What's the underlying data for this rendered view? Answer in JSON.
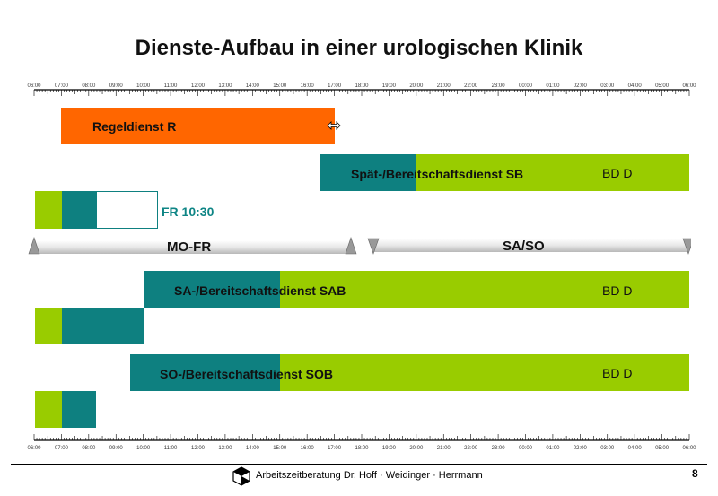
{
  "title": "Dienste-Aufbau in einer urologischen Klinik",
  "time_axis": {
    "labels": [
      "06:00",
      "07:00",
      "08:00",
      "09:00",
      "10:00",
      "11:00",
      "12:00",
      "13:00",
      "14:00",
      "15:00",
      "16:00",
      "17:00",
      "18:00",
      "19:00",
      "20:00",
      "21:00",
      "22:00",
      "23:00",
      "00:00",
      "01:00",
      "02:00",
      "03:00",
      "04:00",
      "05:00",
      "06:00"
    ]
  },
  "bars": {
    "regeldienst": {
      "label": "Regeldienst R",
      "start": "07:00",
      "end": "17:00",
      "color": "#ff6600"
    },
    "spaet": {
      "label": "Spät-/Bereitschaftsdienst SB",
      "teal_start": "16:30",
      "teal_end": "20:00",
      "green_end": "06:00"
    },
    "bd_label": "BD D",
    "fr": {
      "label": "FR 10:30",
      "start": "06:00",
      "end": "10:30"
    },
    "sab": {
      "label": "SA-/Bereitschaftsdienst SAB",
      "teal_start": "10:00",
      "teal_end": "15:00",
      "green_end": "06:00"
    },
    "sob": {
      "label": "SO-/Bereitschaftsdienst SOB",
      "teal_start": "09:30",
      "teal_end": "15:00",
      "green_end": "06:00"
    }
  },
  "periods": {
    "weekday": "MO-FR",
    "weekend": "SA/SO"
  },
  "colors": {
    "teal": "#0e8080",
    "green": "#99cc00",
    "orange": "#ff6600"
  },
  "footer": {
    "text": "Arbeitszeitberatung Dr. Hoff · Weidinger · Herrmann",
    "page": "8"
  }
}
